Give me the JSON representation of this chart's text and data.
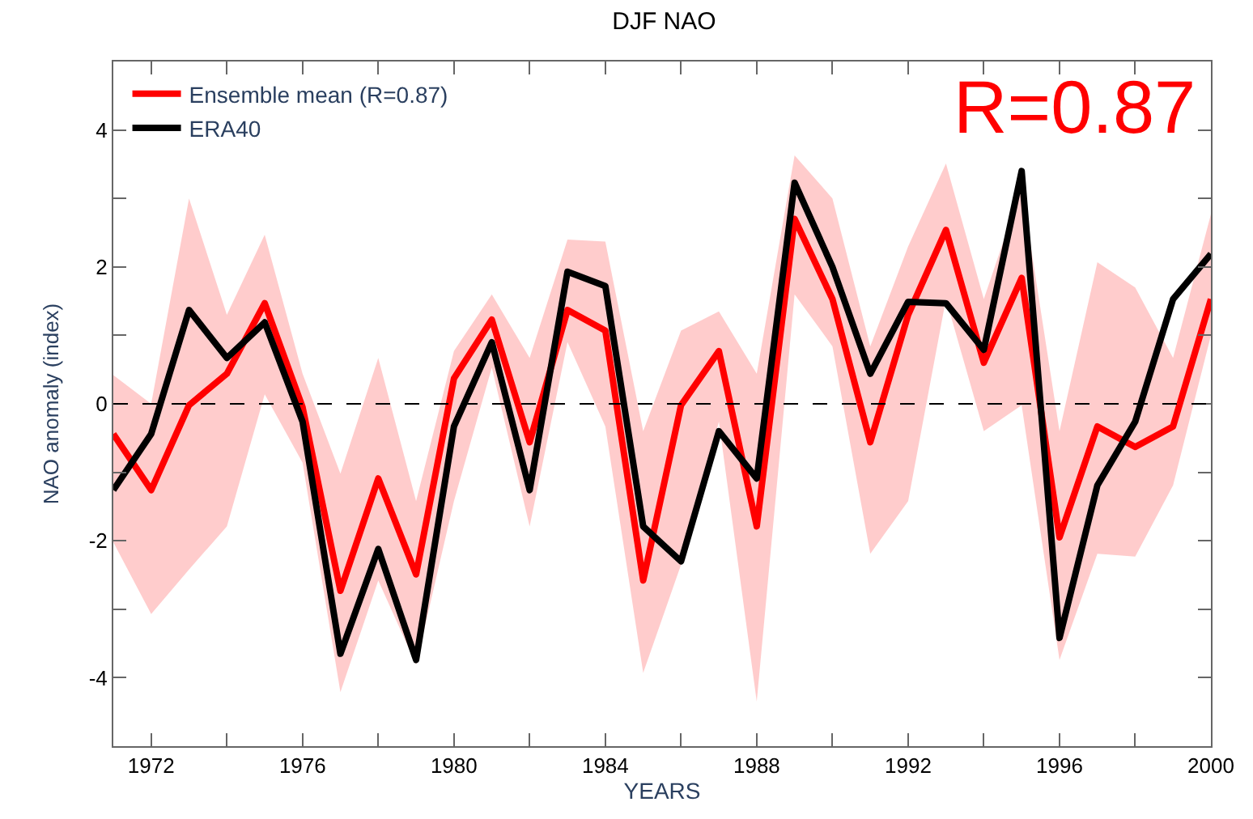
{
  "chart_data": {
    "type": "line",
    "title": "DJF NAO",
    "xlabel": "YEARS",
    "ylabel": "NAO anomaly (index)",
    "x": [
      1971,
      1972,
      1973,
      1974,
      1975,
      1976,
      1977,
      1978,
      1979,
      1980,
      1981,
      1982,
      1983,
      1984,
      1985,
      1986,
      1987,
      1988,
      1989,
      1990,
      1991,
      1992,
      1993,
      1994,
      1995,
      1996,
      1997,
      1998,
      1999,
      2000
    ],
    "series": [
      {
        "name": "Ensemble mean (R=0.87)",
        "color": "#ff0000",
        "values": [
          -0.44,
          -1.26,
          -0.02,
          0.44,
          1.47,
          -0.05,
          -2.73,
          -1.09,
          -2.49,
          0.37,
          1.23,
          -0.56,
          1.37,
          1.07,
          -2.58,
          -0.02,
          0.77,
          -1.79,
          2.7,
          1.53,
          -0.56,
          1.3,
          2.54,
          0.6,
          1.84,
          -1.95,
          -0.33,
          -0.63,
          -0.33,
          1.53
        ],
        "lower": [
          -2.02,
          -3.07,
          -2.42,
          -1.79,
          0.14,
          -0.86,
          -4.21,
          -2.58,
          -3.81,
          -1.42,
          0.53,
          -1.79,
          0.9,
          -0.33,
          -3.93,
          -2.35,
          -0.26,
          -4.35,
          1.6,
          0.84,
          -2.19,
          -1.42,
          1.53,
          -0.4,
          -0.02,
          -3.74,
          -2.19,
          -2.23,
          -1.19,
          1.0
        ],
        "upper": [
          0.42,
          0.0,
          3.0,
          1.3,
          2.47,
          0.44,
          -1.02,
          0.67,
          -1.42,
          0.77,
          1.6,
          0.67,
          2.4,
          2.37,
          -0.4,
          1.07,
          1.35,
          0.44,
          3.63,
          3.0,
          0.84,
          2.3,
          3.51,
          1.53,
          3.16,
          -0.4,
          2.07,
          1.7,
          0.67,
          2.77
        ]
      },
      {
        "name": "ERA40",
        "color": "#000000",
        "values": [
          -1.26,
          -0.44,
          1.37,
          0.67,
          1.19,
          -0.26,
          -3.65,
          -2.12,
          -3.74,
          -0.33,
          0.9,
          -1.26,
          1.93,
          1.72,
          -1.79,
          -2.3,
          -0.4,
          -1.09,
          3.23,
          2.0,
          0.44,
          1.49,
          1.47,
          0.79,
          3.4,
          -3.42,
          -1.19,
          -0.26,
          1.53,
          2.19
        ]
      }
    ],
    "xlim": [
      1971,
      2000
    ],
    "xticks": [
      1972,
      {
        "value": 1974,
        "label": null
      },
      1976,
      {
        "value": 1978,
        "label": null
      },
      1980,
      {
        "value": 1982,
        "label": null
      },
      1984,
      {
        "value": 1986,
        "label": null
      },
      1988,
      {
        "value": 1990,
        "label": null
      },
      1992,
      {
        "value": 1994,
        "label": null
      },
      1996,
      {
        "value": 1998,
        "label": null
      },
      2000
    ],
    "ylim": [
      -5,
      5
    ],
    "yticks": [
      -4,
      {
        "value": -3,
        "label": null
      },
      -2,
      {
        "value": -1,
        "label": null
      },
      0,
      {
        "value": 1,
        "label": null
      },
      2,
      {
        "value": 3,
        "label": null
      },
      4
    ],
    "ref_lines": [
      {
        "axis": "y",
        "value": 0,
        "label": null,
        "color": "#000000",
        "line_style": "dashed"
      }
    ],
    "annotations": [
      "R=0.87"
    ],
    "legend": "top left",
    "marker": "none",
    "line_style": "solid"
  }
}
